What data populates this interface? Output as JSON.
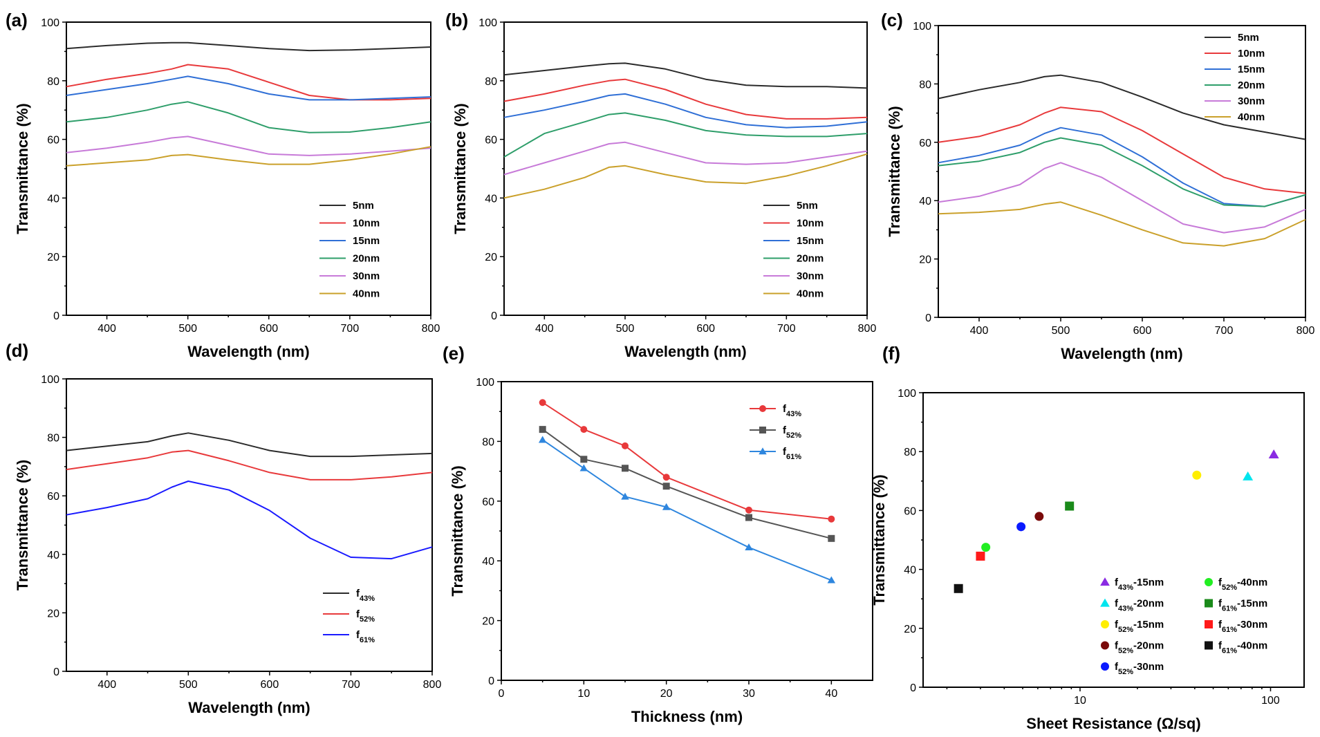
{
  "colors": {
    "black": "#2b2b2b",
    "red": "#e8393b",
    "blue": "#2f6fd6",
    "green": "#2e9e6a",
    "violet": "#c77ad8",
    "gold": "#caa02a",
    "gray": "#555555",
    "pure_blue": "#1a1aff",
    "line_blue": "#2e86de"
  },
  "chart_data": [
    {
      "id": "a",
      "panel_label": "(a)",
      "type": "line",
      "xlabel": "Wavelength (nm)",
      "ylabel": "Transmittance (%)",
      "xlim": [
        350,
        800
      ],
      "ylim": [
        0,
        100
      ],
      "xticks": [
        400,
        500,
        600,
        700,
        800
      ],
      "yticks": [
        0,
        20,
        40,
        60,
        80,
        100
      ],
      "legend_pos": "bottom-right",
      "x": [
        350,
        400,
        450,
        480,
        500,
        550,
        600,
        650,
        700,
        750,
        800
      ],
      "series": [
        {
          "name": "5nm",
          "color": "black",
          "values": [
            91,
            92,
            92.8,
            93,
            93,
            92,
            91,
            90.3,
            90.5,
            91,
            91.5
          ]
        },
        {
          "name": "10nm",
          "color": "red",
          "values": [
            78,
            80.5,
            82.5,
            84,
            85.5,
            84,
            79.5,
            75,
            73.5,
            73.5,
            74
          ]
        },
        {
          "name": "15nm",
          "color": "blue",
          "values": [
            75,
            77,
            79,
            80.5,
            81.5,
            79,
            75.5,
            73.5,
            73.5,
            74,
            74.5
          ]
        },
        {
          "name": "20nm",
          "color": "green",
          "values": [
            66,
            67.5,
            70,
            72,
            72.8,
            69,
            64,
            62.3,
            62.5,
            64,
            66
          ]
        },
        {
          "name": "30nm",
          "color": "violet",
          "values": [
            55.5,
            57,
            59,
            60.5,
            61,
            58,
            55,
            54.5,
            55,
            56,
            57
          ]
        },
        {
          "name": "40nm",
          "color": "gold",
          "values": [
            51,
            52,
            53,
            54.5,
            54.8,
            53,
            51.5,
            51.5,
            53,
            55,
            57.5
          ]
        }
      ]
    },
    {
      "id": "b",
      "panel_label": "(b)",
      "type": "line",
      "xlabel": "Wavelength (nm)",
      "ylabel": "Transmittance (%)",
      "xlim": [
        350,
        800
      ],
      "ylim": [
        0,
        100
      ],
      "xticks": [
        400,
        500,
        600,
        700,
        800
      ],
      "yticks": [
        0,
        20,
        40,
        60,
        80,
        100
      ],
      "legend_pos": "bottom-right",
      "x": [
        350,
        400,
        450,
        480,
        500,
        550,
        600,
        650,
        700,
        750,
        800
      ],
      "series": [
        {
          "name": "5nm",
          "color": "black",
          "values": [
            82,
            83.5,
            85,
            85.8,
            86,
            84,
            80.5,
            78.5,
            78,
            78,
            77.5
          ]
        },
        {
          "name": "10nm",
          "color": "red",
          "values": [
            73,
            75.5,
            78.5,
            80,
            80.5,
            77,
            72,
            68.5,
            67,
            67,
            67.5
          ]
        },
        {
          "name": "15nm",
          "color": "blue",
          "values": [
            67.5,
            70,
            73,
            75,
            75.5,
            72,
            67.5,
            65,
            64,
            64.5,
            66
          ]
        },
        {
          "name": "20nm",
          "color": "green",
          "values": [
            54,
            62,
            66,
            68.5,
            69,
            66.5,
            63,
            61.5,
            61,
            61,
            62
          ]
        },
        {
          "name": "30nm",
          "color": "violet",
          "values": [
            48,
            52,
            56,
            58.5,
            59,
            55.5,
            52,
            51.5,
            52,
            54,
            56
          ]
        },
        {
          "name": "40nm",
          "color": "gold",
          "values": [
            40,
            43,
            47,
            50.5,
            51,
            48,
            45.5,
            45,
            47.5,
            51,
            55
          ]
        }
      ]
    },
    {
      "id": "c",
      "panel_label": "(c)",
      "type": "line",
      "xlabel": "Wavelength (nm)",
      "ylabel": "Transmittance (%)",
      "xlim": [
        350,
        800
      ],
      "ylim": [
        0,
        100
      ],
      "xticks": [
        400,
        500,
        600,
        700,
        800
      ],
      "yticks": [
        0,
        20,
        40,
        60,
        80,
        100
      ],
      "legend_pos": "top-right",
      "x": [
        350,
        400,
        450,
        480,
        500,
        550,
        600,
        650,
        700,
        750,
        800
      ],
      "series": [
        {
          "name": "5nm",
          "color": "black",
          "values": [
            75,
            78,
            80.5,
            82.5,
            83,
            80.5,
            75.5,
            70,
            66,
            63.5,
            61
          ]
        },
        {
          "name": "10nm",
          "color": "red",
          "values": [
            60,
            62,
            66,
            70,
            72,
            70.5,
            64,
            56,
            48,
            44,
            42.5
          ]
        },
        {
          "name": "15nm",
          "color": "blue",
          "values": [
            53,
            55.5,
            59,
            63,
            65,
            62.5,
            55,
            46,
            39,
            38,
            42
          ]
        },
        {
          "name": "20nm",
          "color": "green",
          "values": [
            52,
            53.5,
            56.5,
            60,
            61.5,
            59,
            52,
            44,
            38.5,
            38,
            42
          ]
        },
        {
          "name": "30nm",
          "color": "violet",
          "values": [
            39.5,
            41.5,
            45.5,
            51,
            53,
            48,
            40,
            32,
            29,
            31,
            37
          ]
        },
        {
          "name": "40nm",
          "color": "gold",
          "values": [
            35.5,
            36,
            37,
            38.8,
            39.5,
            35,
            30,
            25.5,
            24.5,
            27,
            33.5
          ]
        }
      ]
    },
    {
      "id": "d",
      "panel_label": "(d)",
      "type": "line",
      "xlabel": "Wavelength (nm)",
      "ylabel": "Transmittance (%)",
      "xlim": [
        350,
        800
      ],
      "ylim": [
        0,
        100
      ],
      "xticks": [
        400,
        500,
        600,
        700,
        800
      ],
      "yticks": [
        0,
        20,
        40,
        60,
        80,
        100
      ],
      "legend_pos": "bottom-right",
      "x": [
        350,
        400,
        450,
        480,
        500,
        550,
        600,
        650,
        700,
        750,
        800
      ],
      "series": [
        {
          "name": "f",
          "sub": "43%",
          "color": "black",
          "values": [
            75.5,
            77,
            78.5,
            80.5,
            81.5,
            79,
            75.5,
            73.5,
            73.5,
            74,
            74.5
          ]
        },
        {
          "name": "f",
          "sub": "52%",
          "color": "red",
          "values": [
            69,
            71,
            73,
            75,
            75.5,
            72,
            68,
            65.5,
            65.5,
            66.5,
            68
          ]
        },
        {
          "name": "f",
          "sub": "61%",
          "color": "pure_blue",
          "values": [
            53.5,
            56,
            59,
            63,
            65,
            62,
            55,
            45.5,
            39,
            38.5,
            42.5
          ]
        }
      ]
    },
    {
      "id": "e",
      "panel_label": "(e)",
      "type": "line",
      "xlabel": "Thickness (nm)",
      "ylabel": "Transmittance (%)",
      "xlim": [
        0,
        45
      ],
      "ylim": [
        0,
        100
      ],
      "xticks": [
        0,
        10,
        20,
        30,
        40
      ],
      "yticks": [
        0,
        20,
        40,
        60,
        80,
        100
      ],
      "legend_pos": "top-right",
      "x": [
        5,
        10,
        15,
        20,
        30,
        40
      ],
      "series": [
        {
          "name": "f",
          "sub": "43%",
          "color": "red",
          "marker": "circle",
          "values": [
            93,
            84,
            78.5,
            68,
            57,
            54
          ]
        },
        {
          "name": "f",
          "sub": "52%",
          "color": "gray",
          "marker": "square",
          "values": [
            84,
            74,
            71,
            65,
            54.5,
            47.5
          ]
        },
        {
          "name": "f",
          "sub": "61%",
          "color": "line_blue",
          "marker": "triangle",
          "values": [
            80.5,
            71,
            61.5,
            58,
            44.5,
            33.5
          ]
        }
      ]
    },
    {
      "id": "f",
      "panel_label": "(f)",
      "type": "scatter",
      "xlabel": "Sheet Resistance (Ω/sq)",
      "ylabel": "Transmittance (%)",
      "xscale": "log",
      "xlim": [
        1.5,
        150
      ],
      "ylim": [
        0,
        100
      ],
      "xticks": [
        10,
        100
      ],
      "yticks": [
        0,
        20,
        40,
        60,
        80,
        100
      ],
      "legend_pos": "bottom-right",
      "points": [
        {
          "name": "f",
          "sub": "43%",
          "suffix": "-15nm",
          "x": 104,
          "y": 79,
          "color": "#8a2be2",
          "marker": "triangle"
        },
        {
          "name": "f",
          "sub": "43%",
          "suffix": "-20nm",
          "x": 76,
          "y": 71.5,
          "color": "#00e5ee",
          "marker": "triangle"
        },
        {
          "name": "f",
          "sub": "52%",
          "suffix": "-15nm",
          "x": 41,
          "y": 72,
          "color": "#ffee00",
          "marker": "circle"
        },
        {
          "name": "f",
          "sub": "52%",
          "suffix": "-20nm",
          "x": 6.1,
          "y": 58,
          "color": "#7a0a0a",
          "marker": "circle"
        },
        {
          "name": "f",
          "sub": "52%",
          "suffix": "-30nm",
          "x": 4.9,
          "y": 54.5,
          "color": "#0a1aff",
          "marker": "circle"
        },
        {
          "name": "f",
          "sub": "52%",
          "suffix": "-40nm",
          "x": 3.2,
          "y": 47.5,
          "color": "#22ee22",
          "marker": "circle"
        },
        {
          "name": "f",
          "sub": "61%",
          "suffix": "-15nm",
          "x": 8.8,
          "y": 61.5,
          "color": "#1a8a1a",
          "marker": "square"
        },
        {
          "name": "f",
          "sub": "61%",
          "suffix": "-30nm",
          "x": 3.0,
          "y": 44.5,
          "color": "#ff1a1a",
          "marker": "square"
        },
        {
          "name": "f",
          "sub": "61%",
          "suffix": "-40nm",
          "x": 2.3,
          "y": 33.5,
          "color": "#111111",
          "marker": "square"
        }
      ]
    }
  ]
}
